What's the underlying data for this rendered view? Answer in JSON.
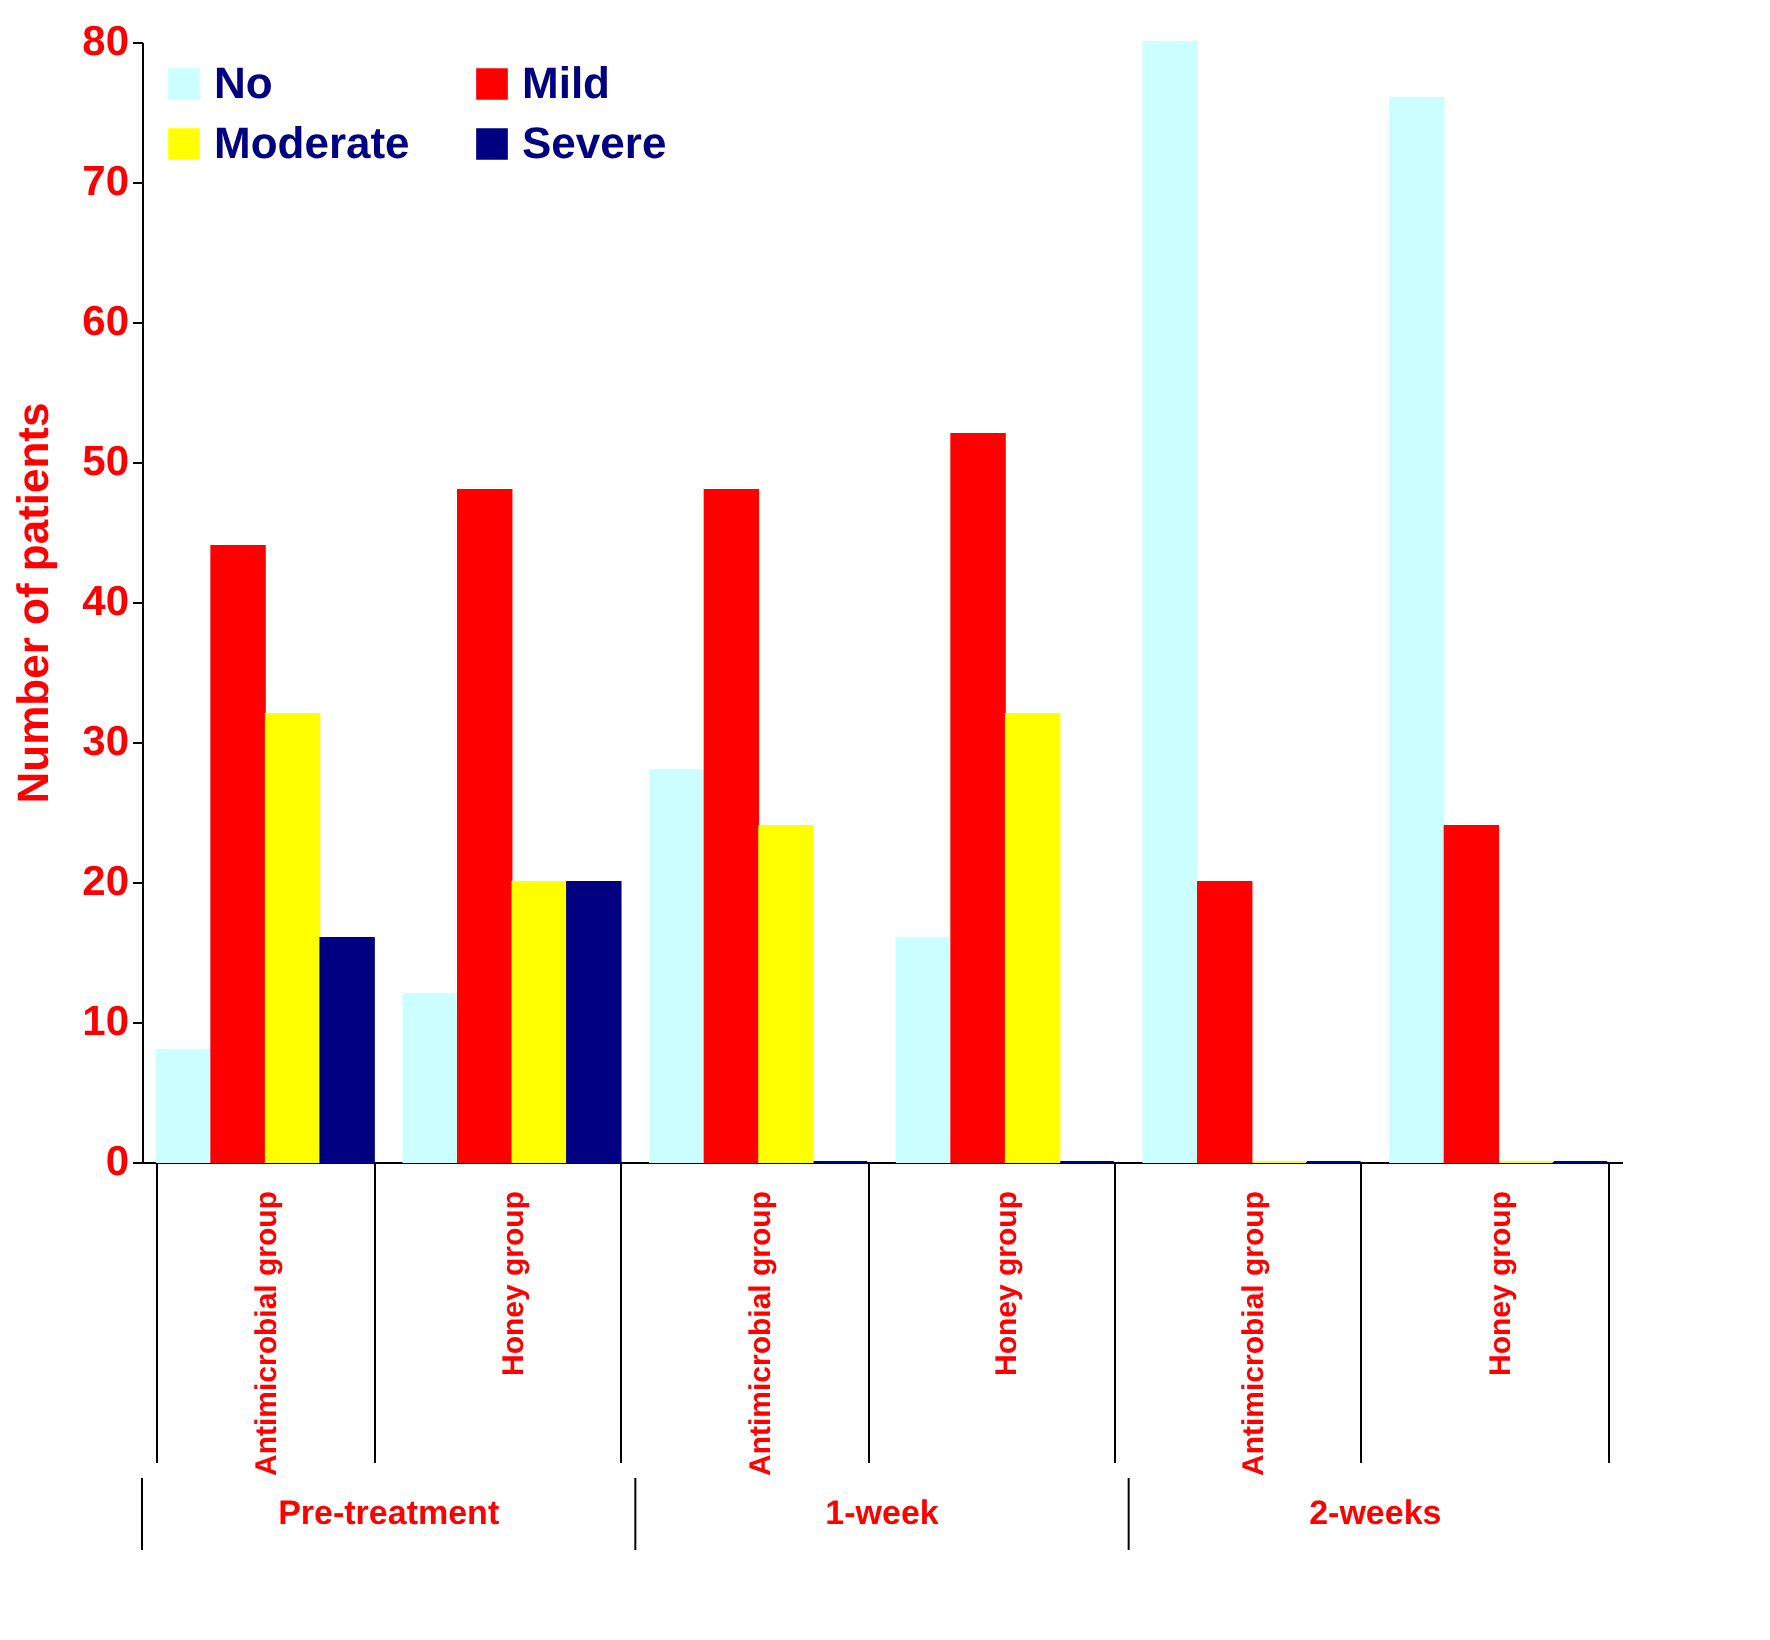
{
  "chart_data": {
    "type": "bar",
    "ylabel": "Number of patients",
    "categories": [
      "Antimicrobial group",
      "Honey group",
      "Antimicrobial group",
      "Honey group",
      "Antimicrobial group",
      "Honey group"
    ],
    "series": [
      {
        "name": "No",
        "color": "#ccffff",
        "values": [
          8,
          12,
          28,
          16,
          80,
          76
        ]
      },
      {
        "name": "Mild",
        "color": "#ff0000",
        "values": [
          44,
          48,
          48,
          52,
          20,
          24
        ]
      },
      {
        "name": "Moderate",
        "color": "#ffff00",
        "values": [
          32,
          20,
          24,
          32,
          0,
          0
        ]
      },
      {
        "name": "Severe",
        "color": "#000080",
        "values": [
          16,
          20,
          0,
          0,
          0,
          0
        ]
      }
    ],
    "ylim": [
      0,
      80
    ],
    "yticks": [
      0,
      10,
      20,
      30,
      40,
      50,
      60,
      70,
      80
    ],
    "legend": "top left",
    "annotations": [
      "Pre-treatment",
      "1-week",
      "2-weeks"
    ]
  }
}
